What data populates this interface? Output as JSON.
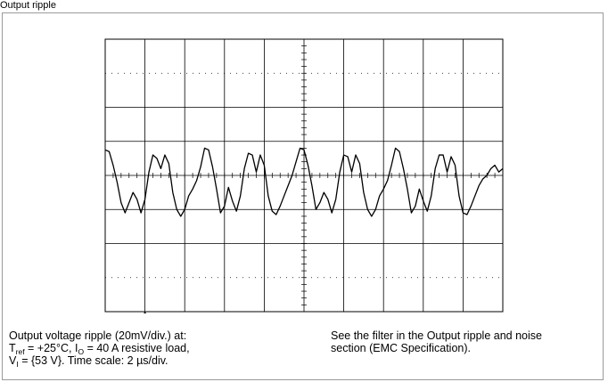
{
  "header": {
    "fragment": "Output ripple"
  },
  "chart_data": {
    "type": "line",
    "title": "",
    "xlabel": "",
    "ylabel": "",
    "grid": true,
    "x_divisions": 10,
    "y_divisions": 8,
    "x_unit": "µs",
    "x_scale_per_div": 2,
    "y_unit": "mV",
    "y_scale_per_div": 20,
    "xlim": [
      0,
      20
    ],
    "ylim": [
      -80,
      80
    ],
    "series": [
      {
        "x": [
          0,
          0.2,
          0.4,
          0.6,
          0.8,
          1.0,
          1.2,
          1.4,
          1.6,
          1.8,
          2.0,
          2.2,
          2.4,
          2.6,
          2.8,
          3.0,
          3.2,
          3.4,
          3.6,
          3.8,
          4.0,
          4.2,
          4.4,
          4.6,
          4.8,
          5.0,
          5.2,
          5.4,
          5.6,
          5.8,
          6.0,
          6.2,
          6.4,
          6.6,
          6.8,
          7.0,
          7.2,
          7.4,
          7.6,
          7.8,
          8.0,
          8.2,
          8.4,
          8.6,
          8.8,
          9.0,
          9.2,
          9.4,
          9.6,
          9.8,
          10.0,
          10.2,
          10.4,
          10.6,
          10.8,
          11.0,
          11.2,
          11.4,
          11.6,
          11.8,
          12.0,
          12.2,
          12.4,
          12.6,
          12.8,
          13.0,
          13.2,
          13.4,
          13.6,
          13.8,
          14.0,
          14.2,
          14.4,
          14.6,
          14.8,
          15.0,
          15.2,
          15.4,
          15.6,
          15.8,
          16.0,
          16.2,
          16.4,
          16.6,
          16.8,
          17.0,
          17.2,
          17.4,
          17.6,
          17.8,
          18.0,
          18.2,
          18.4,
          18.6,
          18.8,
          19.0,
          19.2,
          19.4,
          19.6,
          19.8,
          20.0
        ],
        "values": [
          15,
          14,
          6,
          -4,
          -16,
          -22,
          -16,
          -10,
          -14,
          -22,
          -14,
          2,
          12,
          10,
          4,
          12,
          7,
          -10,
          -20,
          -24,
          -20,
          -12,
          -8,
          -3,
          5,
          16,
          15,
          5,
          -8,
          -22,
          -18,
          -7,
          -15,
          -21,
          -12,
          4,
          13,
          12,
          2,
          12,
          6,
          -12,
          -21,
          -23,
          -18,
          -12,
          -6,
          0,
          8,
          16,
          15,
          6,
          -6,
          -20,
          -16,
          -10,
          -14,
          -22,
          -14,
          2,
          12,
          11,
          2,
          12,
          7,
          -10,
          -20,
          -24,
          -20,
          -12,
          -8,
          -3,
          6,
          16,
          14,
          4,
          -8,
          -22,
          -18,
          -8,
          -15,
          -21,
          -12,
          4,
          12,
          12,
          2,
          11,
          6,
          -12,
          -22,
          -23,
          -18,
          -12,
          -6,
          -2,
          0,
          4,
          6,
          2,
          4
        ]
      }
    ]
  },
  "caption": {
    "left": {
      "line1": "Output voltage ripple (20mV/div.) at:",
      "line2_a": "T",
      "line2_a_sub": "ref",
      "line2_b": " = +25°C, I",
      "line2_b_sub": "O",
      "line2_c": " = 40 A resistive load,",
      "line3_a": "V",
      "line3_a_sub": "I",
      "line3_b": " = {53 V}. Time scale: 2 µs/div."
    },
    "right": {
      "line1": "See the filter in the Output ripple and noise",
      "line2": "section (EMC Specification)."
    }
  }
}
